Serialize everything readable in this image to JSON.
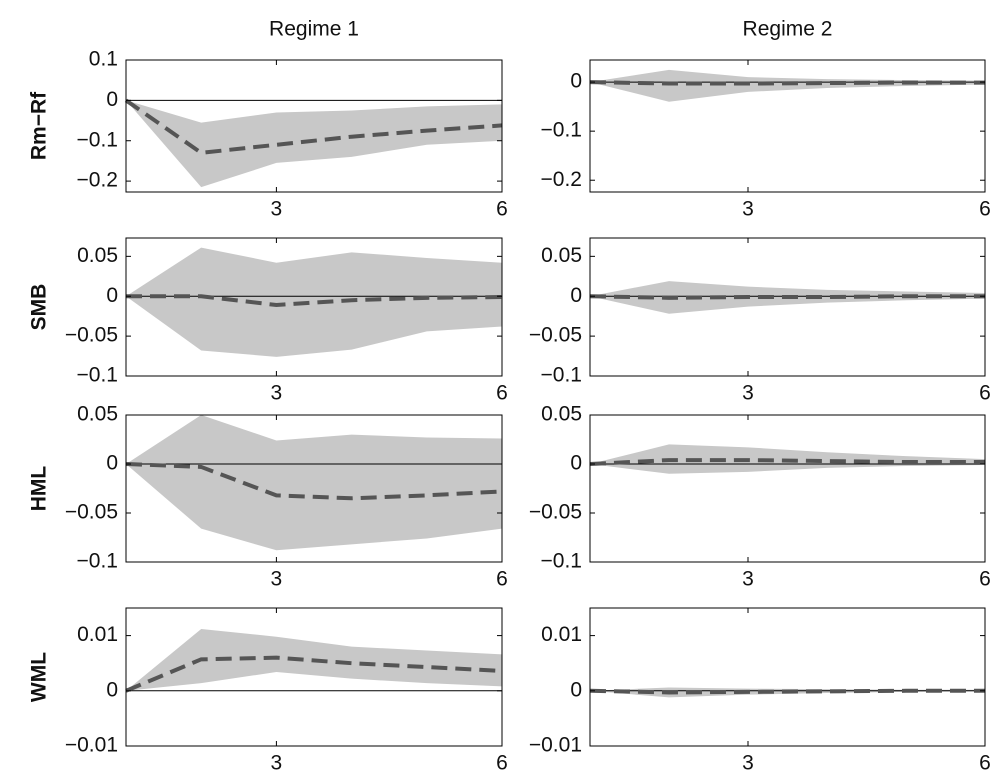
{
  "chart_data": [
    {
      "type": "line",
      "title": "Regime 1",
      "ylabel": "Rm−Rf",
      "x": [
        1,
        2,
        3,
        4,
        5,
        6
      ],
      "xlim": [
        1,
        6
      ],
      "xticks": [
        3,
        6
      ],
      "ylim": [
        -0.227,
        0.1
      ],
      "yticks": [
        {
          "value": -0.2,
          "label": "−0.2"
        },
        {
          "value": -0.1,
          "label": "−0.1"
        },
        0,
        0.1
      ],
      "reference_line": 0,
      "band": {
        "color": "#c8c8c8",
        "lower": [
          0,
          -0.215,
          -0.155,
          -0.14,
          -0.11,
          -0.1
        ],
        "upper": [
          0,
          -0.055,
          -0.03,
          -0.025,
          -0.015,
          -0.01
        ]
      },
      "line": {
        "color": "#555555",
        "values": [
          0,
          -0.13,
          -0.11,
          -0.09,
          -0.075,
          -0.062
        ]
      }
    },
    {
      "type": "line",
      "title": "Regime 2",
      "x": [
        1,
        2,
        3,
        4,
        5,
        6
      ],
      "xlim": [
        1,
        6
      ],
      "xticks": [
        3,
        6
      ],
      "ylim": [
        -0.224,
        0.045
      ],
      "yticks": [
        {
          "value": -0.2,
          "label": "−0.2"
        },
        {
          "value": -0.1,
          "label": "−0.1"
        },
        0
      ],
      "reference_line": 0,
      "band": {
        "color": "#c8c8c8",
        "lower": [
          0,
          -0.04,
          -0.02,
          -0.012,
          -0.008,
          -0.005
        ],
        "upper": [
          0,
          0.025,
          0.01,
          0.006,
          0.004,
          0.003
        ]
      },
      "line": {
        "color": "#555555",
        "values": [
          0,
          -0.003,
          -0.003,
          -0.002,
          -0.001,
          -0.001
        ]
      }
    },
    {
      "type": "line",
      "ylabel": "SMB",
      "x": [
        1,
        2,
        3,
        4,
        5,
        6
      ],
      "xlim": [
        1,
        6
      ],
      "xticks": [
        3,
        6
      ],
      "ylim": [
        -0.1,
        0.073
      ],
      "yticks": [
        {
          "value": -0.1,
          "label": "−0.1"
        },
        {
          "value": -0.05,
          "label": "−0.05"
        },
        0,
        0.05
      ],
      "reference_line": 0,
      "band": {
        "color": "#c8c8c8",
        "lower": [
          0,
          -0.068,
          -0.076,
          -0.067,
          -0.044,
          -0.038
        ],
        "upper": [
          0,
          0.061,
          0.042,
          0.055,
          0.048,
          0.042
        ]
      },
      "line": {
        "color": "#555555",
        "values": [
          0,
          0,
          -0.011,
          -0.005,
          -0.002,
          -0.001
        ]
      }
    },
    {
      "type": "line",
      "x": [
        1,
        2,
        3,
        4,
        5,
        6
      ],
      "xlim": [
        1,
        6
      ],
      "xticks": [
        3,
        6
      ],
      "ylim": [
        -0.1,
        0.073
      ],
      "yticks": [
        {
          "value": -0.1,
          "label": "−0.1"
        },
        {
          "value": -0.05,
          "label": "−0.05"
        },
        0,
        0.05
      ],
      "reference_line": 0,
      "band": {
        "color": "#c8c8c8",
        "lower": [
          0,
          -0.022,
          -0.013,
          -0.008,
          -0.005,
          -0.003
        ],
        "upper": [
          0,
          0.019,
          0.012,
          0.008,
          0.006,
          0.004
        ]
      },
      "line": {
        "color": "#555555",
        "values": [
          0,
          -0.002,
          -0.001,
          -0.001,
          0,
          0
        ]
      }
    },
    {
      "type": "line",
      "ylabel": "HML",
      "x": [
        1,
        2,
        3,
        4,
        5,
        6
      ],
      "xlim": [
        1,
        6
      ],
      "xticks": [
        3,
        6
      ],
      "ylim": [
        -0.1,
        0.05
      ],
      "yticks": [
        {
          "value": -0.1,
          "label": "−0.1"
        },
        {
          "value": -0.05,
          "label": "−0.05"
        },
        0,
        0.05
      ],
      "reference_line": 0,
      "band": {
        "color": "#c8c8c8",
        "lower": [
          0,
          -0.066,
          -0.088,
          -0.082,
          -0.076,
          -0.066
        ],
        "upper": [
          0,
          0.05,
          0.024,
          0.03,
          0.027,
          0.026
        ]
      },
      "line": {
        "color": "#555555",
        "values": [
          0,
          -0.003,
          -0.032,
          -0.035,
          -0.032,
          -0.028
        ]
      }
    },
    {
      "type": "line",
      "x": [
        1,
        2,
        3,
        4,
        5,
        6
      ],
      "xlim": [
        1,
        6
      ],
      "xticks": [
        3,
        6
      ],
      "ylim": [
        -0.1,
        0.05
      ],
      "yticks": [
        {
          "value": -0.1,
          "label": "−0.1"
        },
        {
          "value": -0.05,
          "label": "−0.05"
        },
        0,
        0.05
      ],
      "reference_line": 0,
      "band": {
        "color": "#c8c8c8",
        "lower": [
          0,
          -0.01,
          -0.008,
          -0.004,
          -0.002,
          -0.001
        ],
        "upper": [
          0,
          0.02,
          0.017,
          0.012,
          0.008,
          0.005
        ]
      },
      "line": {
        "color": "#555555",
        "values": [
          0,
          0.004,
          0.004,
          0.003,
          0.002,
          0.002
        ]
      }
    },
    {
      "type": "line",
      "ylabel": "WML",
      "x": [
        1,
        2,
        3,
        4,
        5,
        6
      ],
      "xlim": [
        1,
        6
      ],
      "xticks": [
        3,
        6
      ],
      "ylim": [
        -0.01,
        0.015
      ],
      "yticks": [
        {
          "value": -0.01,
          "label": "−0.01"
        },
        0,
        0.01
      ],
      "reference_line": 0,
      "band": {
        "color": "#c8c8c8",
        "lower": [
          0,
          0.0014,
          0.0034,
          0.0022,
          0.0014,
          0.0008
        ],
        "upper": [
          0,
          0.0112,
          0.0098,
          0.008,
          0.0073,
          0.0066
        ]
      },
      "line": {
        "color": "#555555",
        "values": [
          0,
          0.0057,
          0.006,
          0.005,
          0.0043,
          0.0036
        ]
      }
    },
    {
      "type": "line",
      "x": [
        1,
        2,
        3,
        4,
        5,
        6
      ],
      "xlim": [
        1,
        6
      ],
      "xticks": [
        3,
        6
      ],
      "ylim": [
        -0.01,
        0.015
      ],
      "yticks": [
        {
          "value": -0.01,
          "label": "−0.01"
        },
        0,
        0.01
      ],
      "reference_line": 0,
      "band": {
        "color": "#c8c8c8",
        "lower": [
          0,
          -0.0012,
          -0.0007,
          -0.0004,
          -0.0002,
          -0.0001
        ],
        "upper": [
          0,
          0.0006,
          0.0004,
          0.0003,
          0.0002,
          0.0002
        ]
      },
      "line": {
        "color": "#555555",
        "values": [
          0,
          -0.0003,
          -0.0002,
          -0.0001,
          0,
          0
        ]
      }
    }
  ]
}
